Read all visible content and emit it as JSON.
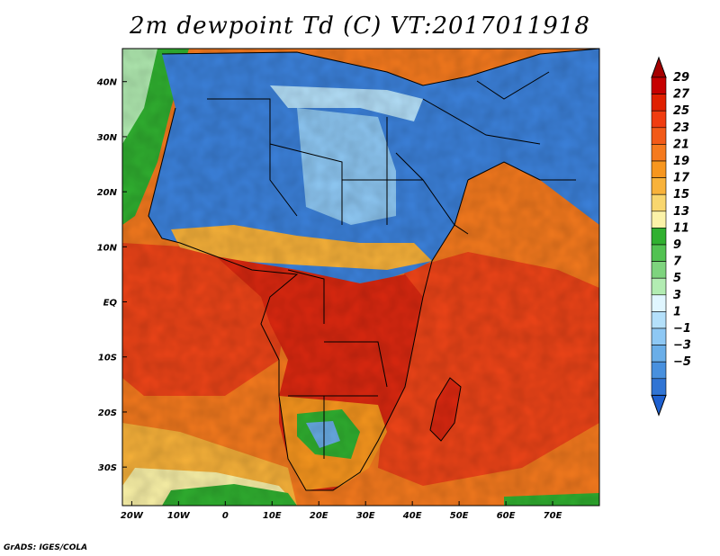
{
  "title": "2m dewpoint Td (C) VT:2017011918",
  "credit": "GrADS: IGES/COLA",
  "map": {
    "region": "Africa",
    "lon_range": [
      -22,
      80
    ],
    "lat_range": [
      -37,
      46
    ],
    "lon_ticks": [
      {
        "value": -20,
        "label": "20W"
      },
      {
        "value": -10,
        "label": "10W"
      },
      {
        "value": 0,
        "label": "0"
      },
      {
        "value": 10,
        "label": "10E"
      },
      {
        "value": 20,
        "label": "20E"
      },
      {
        "value": 30,
        "label": "30E"
      },
      {
        "value": 40,
        "label": "40E"
      },
      {
        "value": 50,
        "label": "50E"
      },
      {
        "value": 60,
        "label": "60E"
      },
      {
        "value": 70,
        "label": "70E"
      }
    ],
    "lat_ticks": [
      {
        "value": 40,
        "label": "40N"
      },
      {
        "value": 30,
        "label": "30N"
      },
      {
        "value": 20,
        "label": "20N"
      },
      {
        "value": 10,
        "label": "10N"
      },
      {
        "value": 0,
        "label": "EQ"
      },
      {
        "value": -10,
        "label": "10S"
      },
      {
        "value": -20,
        "label": "20S"
      },
      {
        "value": -30,
        "label": "30S"
      }
    ]
  },
  "colorbar": {
    "labels": [
      "29",
      "27",
      "25",
      "23",
      "21",
      "19",
      "17",
      "15",
      "13",
      "11",
      "9",
      "7",
      "5",
      "3",
      "1",
      "−1",
      "−3",
      "−5"
    ],
    "colors": {
      "top_arrow": "#a50000",
      "bins": [
        "#c60000",
        "#e02000",
        "#f03c10",
        "#f25a18",
        "#f57a1e",
        "#f7961e",
        "#f8b23a",
        "#f8d66e",
        "#fbf2a8",
        "#30b030",
        "#52c252",
        "#7ed47e",
        "#b2ecb2",
        "#e0f6ff",
        "#b4e0fa",
        "#8ec8f4",
        "#6aaee8",
        "#4890de",
        "#3074d4"
      ],
      "bottom_arrow": "#1e60d0"
    }
  },
  "colors": {
    "ocean_warm": "#ee4418",
    "ocean_orange": "#f57a1e",
    "ocean_cool": "#f8b23a",
    "ocean_pale": "#fbf2a8",
    "land_blue": "#3c82dc",
    "land_pale_blue": "#8ec8f4",
    "land_red": "#dc2810",
    "green": "#30b030",
    "border": "#000000"
  }
}
